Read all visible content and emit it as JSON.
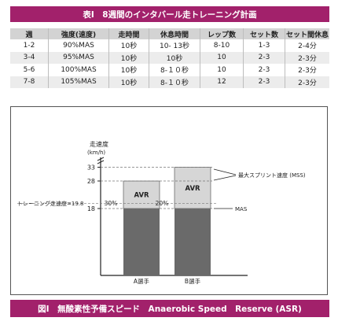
{
  "table": {
    "title": "表Ⅰ　8週間のインタバール走トレーニング計画",
    "headers": [
      "週",
      "強度(速度)",
      "走時間",
      "休息時間",
      "レップ数",
      "セット数",
      "セット間休息"
    ],
    "rows": [
      [
        "1-2",
        "90%MAS",
        "10秒",
        "10- 13秒",
        "8-10",
        "1-3",
        "2-4分"
      ],
      [
        "3-4",
        "95%MAS",
        "10秒",
        "10秒",
        "10",
        "2-3",
        "2-3分"
      ],
      [
        "5-6",
        "100%MAS",
        "10秒",
        "8-１０秒",
        "10",
        "2-3",
        "2-3分"
      ],
      [
        "7-8",
        "105%MAS",
        "10秒",
        "8-１０秒",
        "12",
        "2-3",
        "2-3分"
      ]
    ]
  },
  "figure": {
    "caption": "図Ⅰ　無酸素性予備スピード　Anaerobic Speed　Reserve (ASR)",
    "y_axis_label": "走速度",
    "y_axis_unit": "(km/h)",
    "ticks": [
      "33",
      "28",
      "18"
    ],
    "training_speed_label": "トレーニング走速度=19.8",
    "bar_label": "AVR",
    "pct_a": "30%",
    "pct_b": "20%",
    "mss_label": "最大スプリント速度 (MSS)",
    "mas_label": "MAS",
    "x_labels": [
      "A選手",
      "B選手"
    ]
  },
  "chart_data": {
    "type": "bar",
    "categories": [
      "A選手",
      "B選手"
    ],
    "series": [
      {
        "name": "MAS",
        "values": [
          18,
          18
        ]
      },
      {
        "name": "AVR",
        "values": [
          10,
          15
        ]
      }
    ],
    "mss": [
      28,
      33
    ],
    "training_speed": 19.8,
    "pct_of_avr": [
      "30%",
      "20%"
    ],
    "ylabel": "走速度 (km/h)",
    "y_ticks": [
      18,
      28,
      33
    ],
    "colors": {
      "mas": "#6a6a6a",
      "avr": "#d6d6d6",
      "accent": "#a2216b"
    }
  }
}
